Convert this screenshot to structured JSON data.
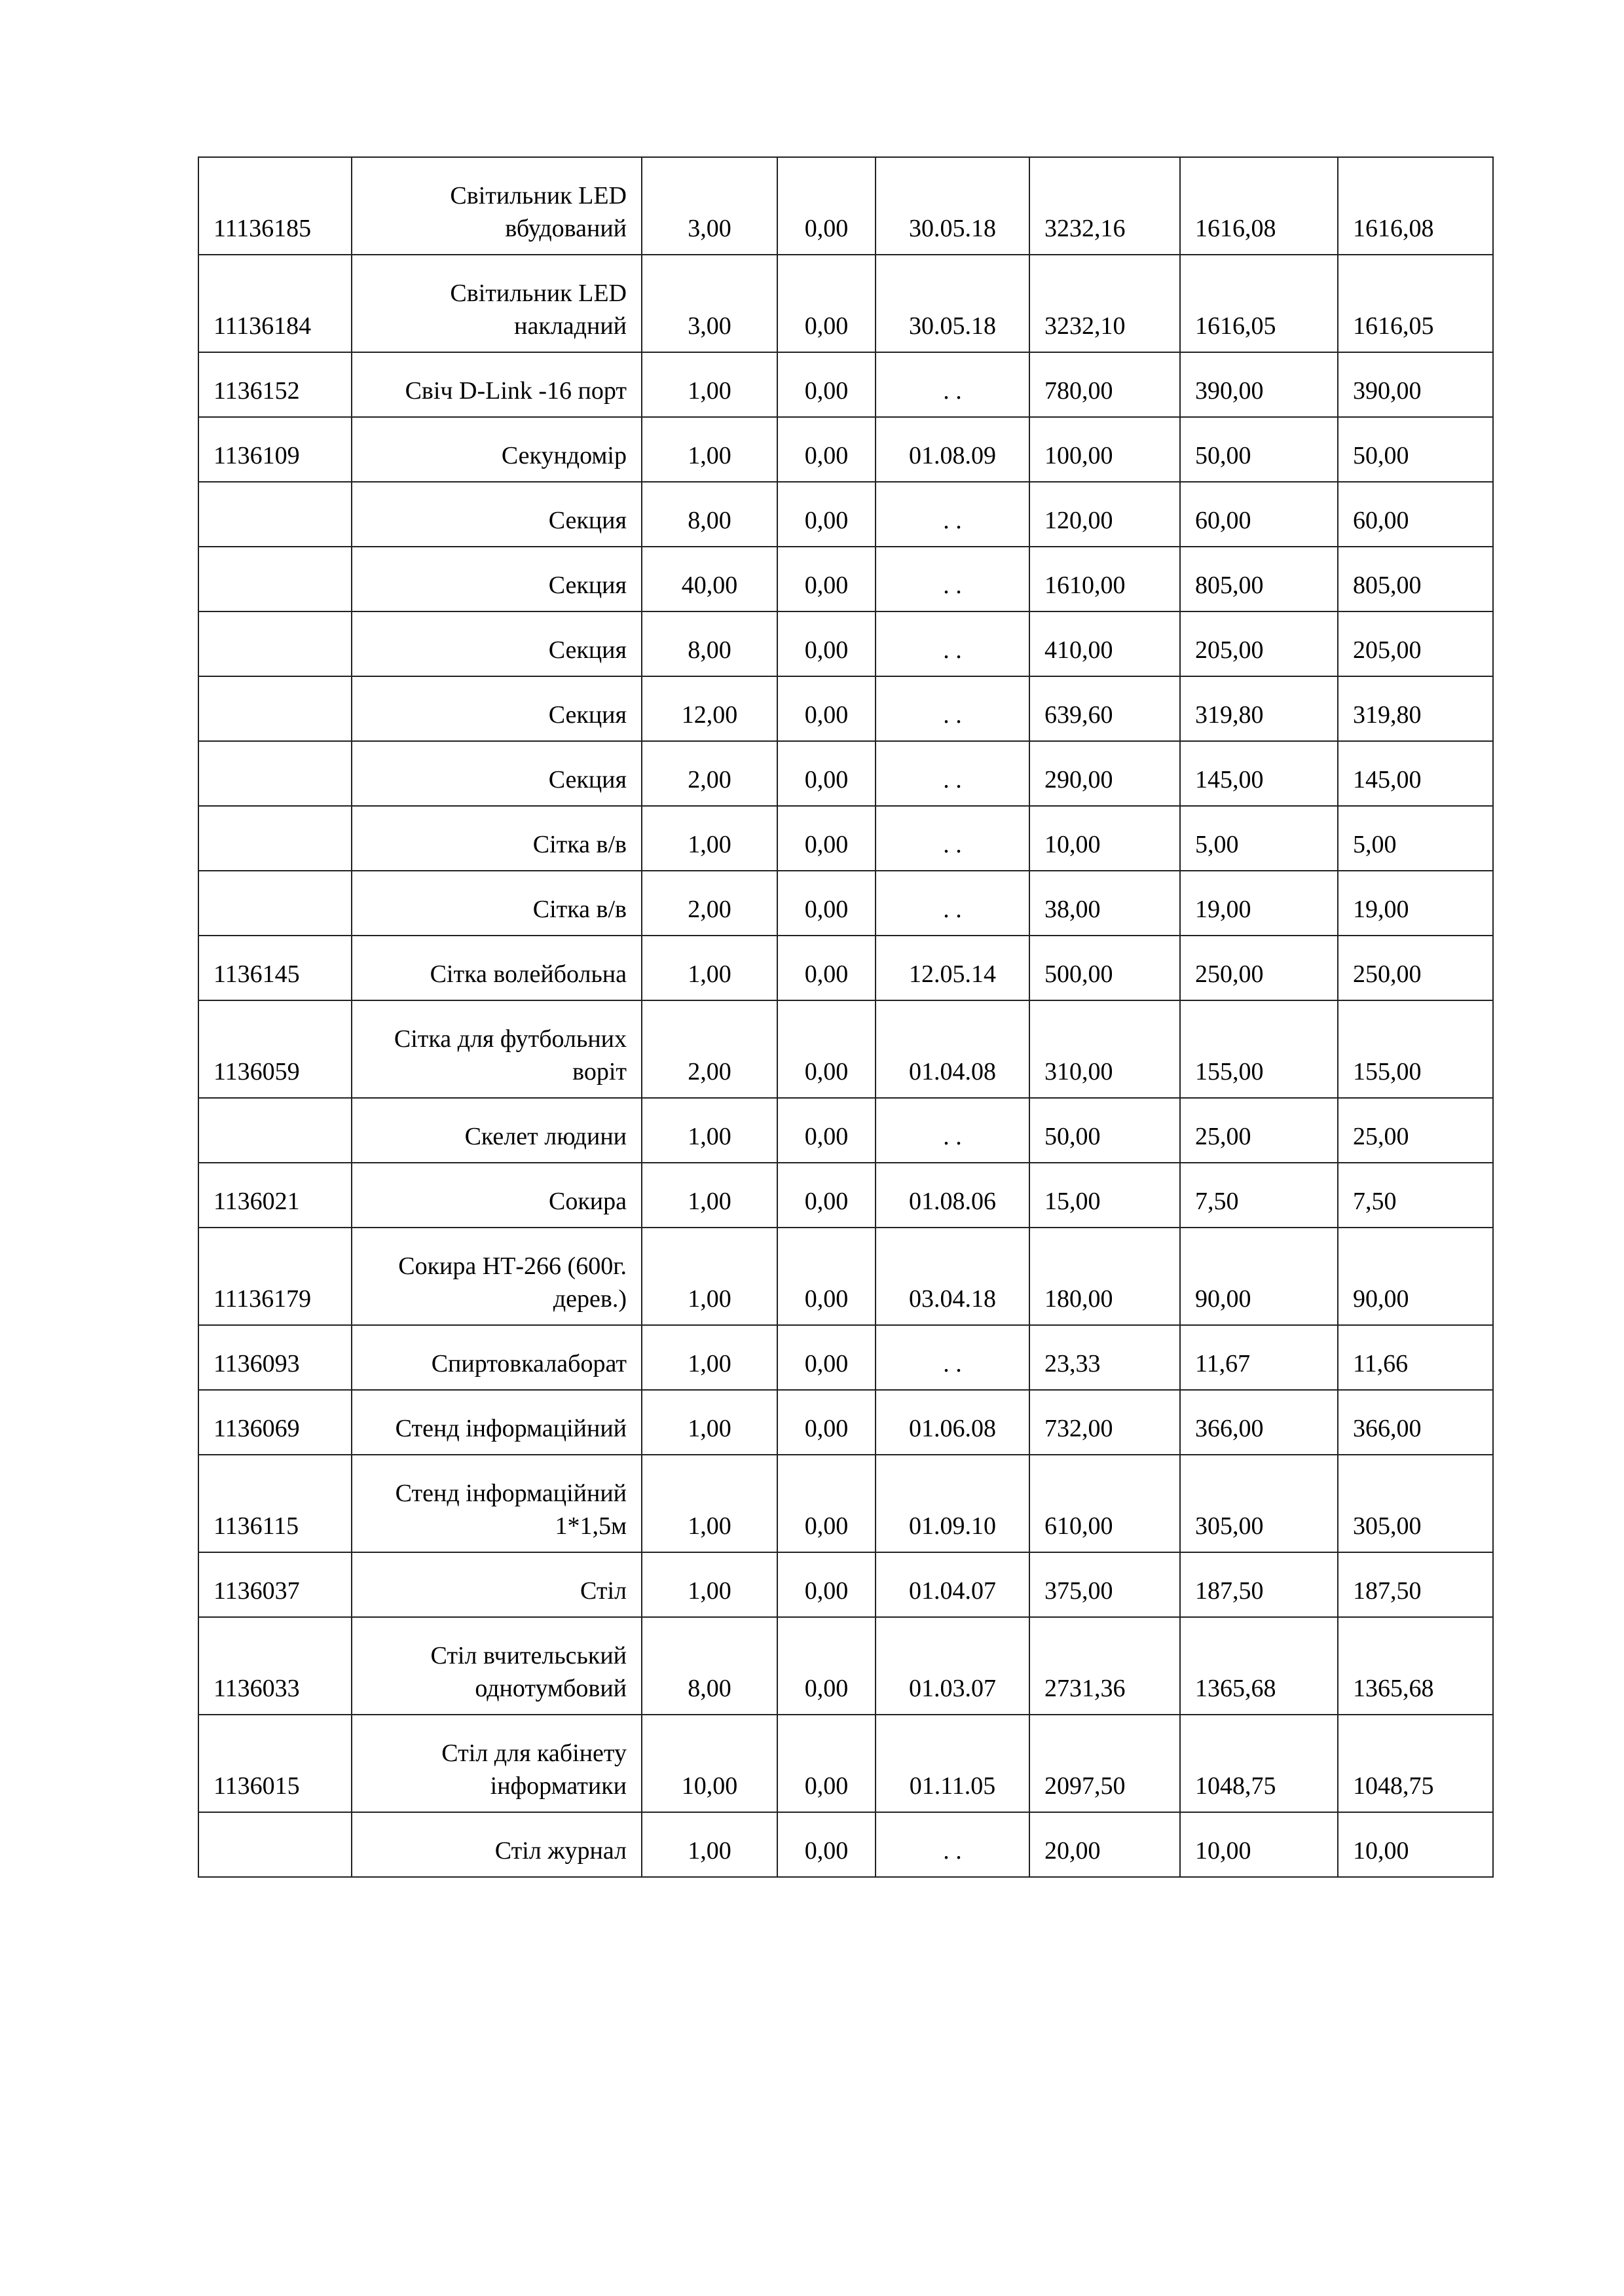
{
  "rows": [
    {
      "code": "11136185",
      "name": "Світильник LED\nвбудований",
      "qty": "3,00",
      "v2": "0,00",
      "date": "30.05.18",
      "sum": "3232,16",
      "a": "1616,08",
      "b": "1616,08",
      "two": true
    },
    {
      "code": "11136184",
      "name": "Світильник LED\nнакладний",
      "qty": "3,00",
      "v2": "0,00",
      "date": "30.05.18",
      "sum": "3232,10",
      "a": "1616,05",
      "b": "1616,05",
      "two": true
    },
    {
      "code": "1136152",
      "name": "Свіч D-Link -16 порт",
      "qty": "1,00",
      "v2": "0,00",
      "date": ".  .",
      "sum": "780,00",
      "a": "390,00",
      "b": "390,00"
    },
    {
      "code": "1136109",
      "name": "Секундомір",
      "qty": "1,00",
      "v2": "0,00",
      "date": "01.08.09",
      "sum": "100,00",
      "a": "50,00",
      "b": "50,00"
    },
    {
      "code": "",
      "name": "Секция",
      "qty": "8,00",
      "v2": "0,00",
      "date": ".  .",
      "sum": "120,00",
      "a": "60,00",
      "b": "60,00"
    },
    {
      "code": "",
      "name": "Секция",
      "qty": "40,00",
      "v2": "0,00",
      "date": ".  .",
      "sum": "1610,00",
      "a": "805,00",
      "b": "805,00"
    },
    {
      "code": "",
      "name": "Секция",
      "qty": "8,00",
      "v2": "0,00",
      "date": ".  .",
      "sum": "410,00",
      "a": "205,00",
      "b": "205,00"
    },
    {
      "code": "",
      "name": "Секция",
      "qty": "12,00",
      "v2": "0,00",
      "date": ".  .",
      "sum": "639,60",
      "a": "319,80",
      "b": "319,80"
    },
    {
      "code": "",
      "name": "Секция",
      "qty": "2,00",
      "v2": "0,00",
      "date": ".  .",
      "sum": "290,00",
      "a": "145,00",
      "b": "145,00"
    },
    {
      "code": "",
      "name": "Сітка в/в",
      "qty": "1,00",
      "v2": "0,00",
      "date": ".  .",
      "sum": "10,00",
      "a": "5,00",
      "b": "5,00"
    },
    {
      "code": "",
      "name": "Сітка в/в",
      "qty": "2,00",
      "v2": "0,00",
      "date": ".  .",
      "sum": "38,00",
      "a": "19,00",
      "b": "19,00"
    },
    {
      "code": "1136145",
      "name": "Сітка волейбольна",
      "qty": "1,00",
      "v2": "0,00",
      "date": "12.05.14",
      "sum": "500,00",
      "a": "250,00",
      "b": "250,00"
    },
    {
      "code": "1136059",
      "name": "Сітка для футбольних\nворіт",
      "qty": "2,00",
      "v2": "0,00",
      "date": "01.04.08",
      "sum": "310,00",
      "a": "155,00",
      "b": "155,00",
      "two": true
    },
    {
      "code": "",
      "name": "Скелет людини",
      "qty": "1,00",
      "v2": "0,00",
      "date": ".  .",
      "sum": "50,00",
      "a": "25,00",
      "b": "25,00"
    },
    {
      "code": "1136021",
      "name": "Сокира",
      "qty": "1,00",
      "v2": "0,00",
      "date": "01.08.06",
      "sum": "15,00",
      "a": "7,50",
      "b": "7,50"
    },
    {
      "code": "11136179",
      "name": "Сокира НТ-266 (600г.\nдерев.)",
      "qty": "1,00",
      "v2": "0,00",
      "date": "03.04.18",
      "sum": "180,00",
      "a": "90,00",
      "b": "90,00",
      "two": true
    },
    {
      "code": "1136093",
      "name": "Спиртовкалаборат",
      "qty": "1,00",
      "v2": "0,00",
      "date": ".  .",
      "sum": "23,33",
      "a": "11,67",
      "b": "11,66"
    },
    {
      "code": "1136069",
      "name": "Стенд інформаційний",
      "qty": "1,00",
      "v2": "0,00",
      "date": "01.06.08",
      "sum": "732,00",
      "a": "366,00",
      "b": "366,00"
    },
    {
      "code": "1136115",
      "name": "Стенд інформаційний\n1*1,5м",
      "qty": "1,00",
      "v2": "0,00",
      "date": "01.09.10",
      "sum": "610,00",
      "a": "305,00",
      "b": "305,00",
      "two": true
    },
    {
      "code": "1136037",
      "name": "Стіл",
      "qty": "1,00",
      "v2": "0,00",
      "date": "01.04.07",
      "sum": "375,00",
      "a": "187,50",
      "b": "187,50"
    },
    {
      "code": "1136033",
      "name": "Стіл вчительський\nоднотумбовий",
      "qty": "8,00",
      "v2": "0,00",
      "date": "01.03.07",
      "sum": "2731,36",
      "a": "1365,68",
      "b": "1365,68",
      "two": true
    },
    {
      "code": "1136015",
      "name": "Стіл для кабінету\nінформатики",
      "qty": "10,00",
      "v2": "0,00",
      "date": "01.11.05",
      "sum": "2097,50",
      "a": "1048,75",
      "b": "1048,75",
      "two": true
    },
    {
      "code": "",
      "name": "Стіл журнал",
      "qty": "1,00",
      "v2": "0,00",
      "date": ".  .",
      "sum": "20,00",
      "a": "10,00",
      "b": "10,00"
    }
  ]
}
